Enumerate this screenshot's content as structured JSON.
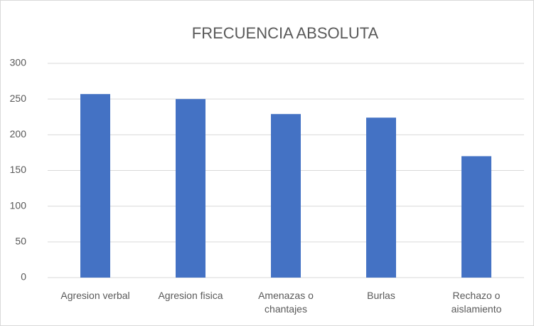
{
  "chart_data": {
    "type": "bar",
    "title": "FRECUENCIA ABSOLUTA",
    "categories": [
      "Agresion verbal",
      "Agresion fisica",
      "Amenazas o chantajes",
      "Burlas",
      "Rechazo o aislamiento"
    ],
    "values": [
      257,
      250,
      229,
      224,
      170
    ],
    "color": "#4472c4",
    "ylim": [
      0,
      300
    ],
    "yticks": [
      0,
      50,
      100,
      150,
      200,
      250,
      300
    ],
    "grid": true
  }
}
